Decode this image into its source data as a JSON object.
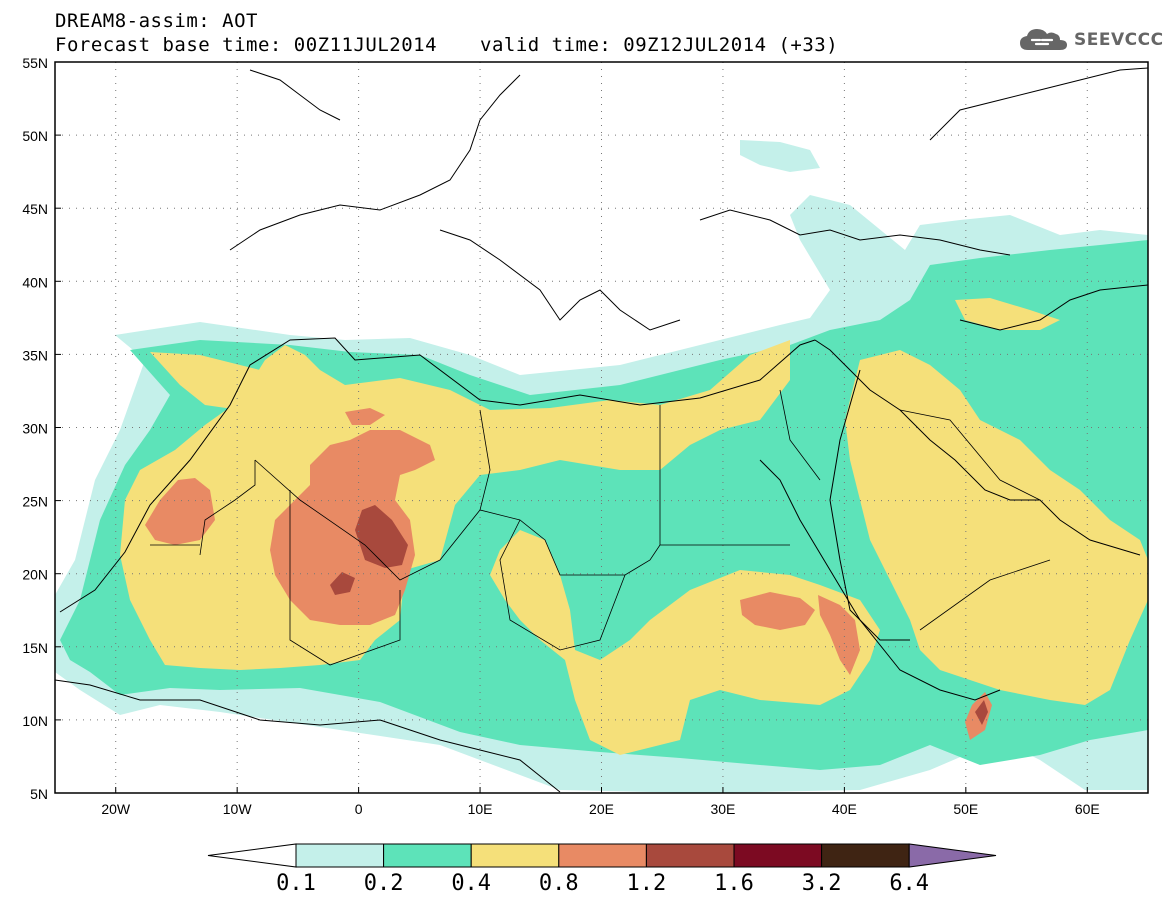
{
  "header": {
    "title": "DREAM8-assim: AOT",
    "base_time": "Forecast base time: 00Z11JUL2014",
    "valid_time": "valid time: 09Z12JUL2014 (+33)"
  },
  "logo": {
    "text": "SEEVCCC",
    "icon": "cloud-icon"
  },
  "map": {
    "lat_labels": [
      "55N",
      "50N",
      "45N",
      "40N",
      "35N",
      "30N",
      "25N",
      "20N",
      "15N",
      "10N",
      "5N"
    ],
    "lon_labels": [
      "20W",
      "10W",
      "0",
      "10E",
      "20E",
      "30E",
      "40E",
      "50E",
      "60E"
    ],
    "lat_range": [
      5,
      55
    ],
    "lon_range": [
      -25,
      65
    ],
    "grid": "dotted"
  },
  "colorbar": {
    "levels": [
      "0.1",
      "0.2",
      "0.4",
      "0.8",
      "1.2",
      "1.6",
      "3.2",
      "6.4"
    ],
    "colors": [
      "#ffffff",
      "#c4f0ea",
      "#5de3b9",
      "#f5e07a",
      "#e88a64",
      "#a8493d",
      "#7c0a22",
      "#3f2413",
      "#8a6aa8"
    ]
  }
}
